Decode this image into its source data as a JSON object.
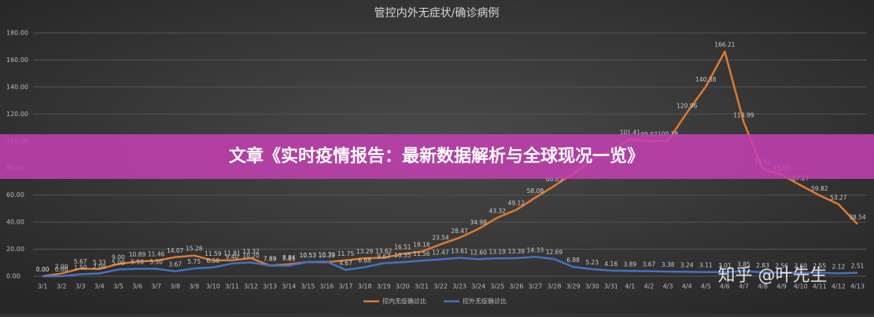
{
  "chart_data": {
    "type": "line",
    "title": "管控内外无症状/确诊病例",
    "banner": "文章《实时疫情报告：最新数据解析与全球现况一览》",
    "watermark": "知乎 @叶先生",
    "categories": [
      "3/1",
      "3/2",
      "3/3",
      "3/4",
      "3/5",
      "3/6",
      "3/7",
      "3/8",
      "3/9",
      "3/10",
      "3/11",
      "3/12",
      "3/13",
      "3/14",
      "3/15",
      "3/16",
      "3/17",
      "3/18",
      "3/19",
      "3/20",
      "3/21",
      "3/22",
      "3/23",
      "3/24",
      "3/25",
      "3/26",
      "3/27",
      "3/28",
      "3/29",
      "3/30",
      "3/31",
      "4/1",
      "4/2",
      "4/3",
      "4/4",
      "4/5",
      "4/6",
      "4/7",
      "4/8",
      "4/9",
      "4/10",
      "4/11",
      "4/12",
      "4/13"
    ],
    "ylim": [
      0,
      180
    ],
    "yticks": [
      {
        "value": 0,
        "label": "0.00"
      },
      {
        "value": 20,
        "label": "20.00"
      },
      {
        "value": 40,
        "label": "40.00"
      },
      {
        "value": 60,
        "label": "60.00"
      },
      {
        "value": 80,
        "label": "80.00"
      },
      {
        "value": 100,
        "label": "100.00"
      },
      {
        "value": 120,
        "label": "120.00"
      },
      {
        "value": 140,
        "label": "140.00"
      },
      {
        "value": 160,
        "label": "160.00"
      },
      {
        "value": 180,
        "label": "180.00"
      }
    ],
    "grid": true,
    "series": [
      {
        "name": "控内无症确诊比",
        "color": "#e07a30",
        "values": [
          0,
          2,
          5.67,
          5.33,
          9,
          10.89,
          11.46,
          14.07,
          15.28,
          11.59,
          11.81,
          13.32,
          7.89,
          8.84,
          10.53,
          10.39,
          11.75,
          13.29,
          13.62,
          16.51,
          18.18,
          23.54,
          28.47,
          34.98,
          43.32,
          49.12,
          58.08,
          66.83,
          76,
          86,
          93,
          101.41,
          99.97,
          100.18,
          120.96,
          140.38,
          166.21,
          113.99,
          79.61,
          75.03,
          67.27,
          59.82,
          53.27,
          38.54
        ],
        "value_labels": [
          "0.00",
          "2.00",
          "5.67",
          "5.33",
          "9.00",
          "10.89",
          "11.46",
          "14.07",
          "15.28",
          "11.59",
          "11.81",
          "13.32",
          "7.89",
          "8.84",
          "10.53",
          "10.39",
          "11.75",
          "13.29",
          "13.62",
          "16.51",
          "18.18",
          "23.54",
          "28.47",
          "34.98",
          "43.32",
          "49.12",
          "58.08",
          "66.83",
          null,
          null,
          null,
          "101.41",
          "99.97",
          "100.18",
          "120.96",
          "140.38",
          "166.21",
          "113.99",
          "79.61",
          "75.03",
          "67.27",
          "59.82",
          "53.27",
          "38.54"
        ]
      },
      {
        "name": "控外无症确诊比",
        "color": "#4472c4",
        "values": [
          0,
          0,
          1.5,
          2,
          5,
          5.5,
          5.5,
          3.67,
          5.75,
          6.5,
          9.4,
          10.2,
          7.83,
          7.81,
          10.53,
          10.79,
          4.67,
          6.68,
          9.67,
          10.35,
          11.56,
          12.47,
          13.61,
          12.6,
          13.19,
          13.39,
          14.33,
          12.69,
          6.88,
          5.23,
          4.16,
          3.89,
          3.67,
          3.38,
          3.24,
          3.11,
          3.01,
          3.85,
          2.83,
          2.56,
          2.6,
          2.55,
          2.12,
          2.51
        ],
        "value_labels": [
          "0.00",
          "0.00",
          "1.50",
          "2.00",
          "5.00",
          "5.50",
          "5.50",
          "3.67",
          "5.75",
          "6.50",
          "9.40",
          "10.20",
          "7.83",
          "7.81",
          "10.53",
          "10.79",
          "4.67",
          "6.68",
          "9.67",
          "10.35",
          "11.56",
          "12.47",
          "13.61",
          "12.60",
          "13.19",
          "13.39",
          "14.33",
          "12.69",
          "6.88",
          "5.23",
          "4.16",
          "3.89",
          "3.67",
          "3.38",
          "3.24",
          "3.11",
          "3.01",
          "3.85",
          "2.83",
          "2.56",
          "2.60",
          "2.55",
          "2.12",
          "2.51"
        ]
      }
    ]
  }
}
